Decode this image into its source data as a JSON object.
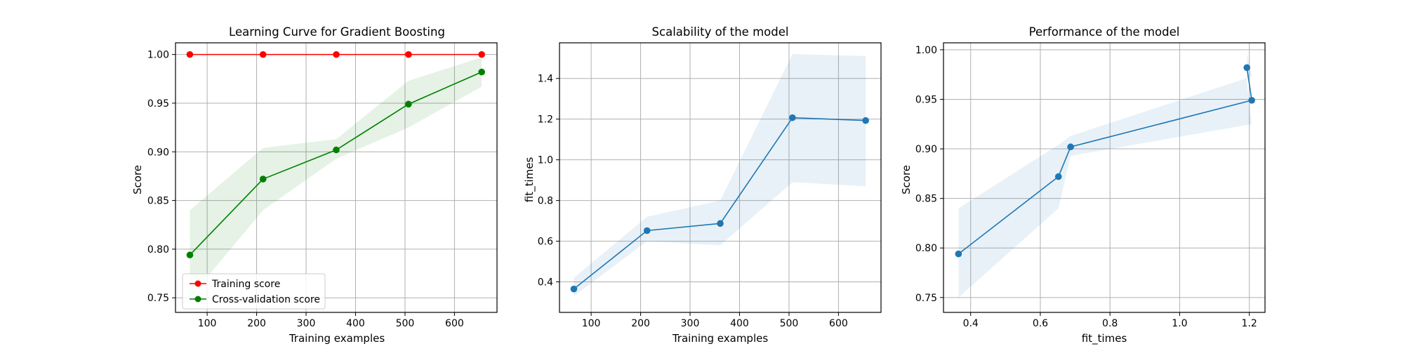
{
  "chart_data": [
    {
      "type": "line",
      "title": "Learning Curve for Gradient Boosting",
      "xlabel": "Training examples",
      "ylabel": "Score",
      "xlim": [
        36,
        686
      ],
      "ylim": [
        0.735,
        1.012
      ],
      "xticks": [
        100,
        200,
        300,
        400,
        500,
        600
      ],
      "yticks": [
        0.75,
        0.8,
        0.85,
        0.9,
        0.95,
        1.0
      ],
      "ytick_labels": [
        "0.75",
        "0.80",
        "0.85",
        "0.90",
        "0.95",
        "1.00"
      ],
      "grid": true,
      "legend_position": "lower-left",
      "x": [
        65,
        213,
        361,
        507,
        655
      ],
      "series": [
        {
          "name": "Training score",
          "color": "#ff0000",
          "values": [
            1.0,
            1.0,
            1.0,
            1.0,
            1.0
          ],
          "band_low": [
            1.0,
            1.0,
            1.0,
            1.0,
            1.0
          ],
          "band_high": [
            1.0,
            1.0,
            1.0,
            1.0,
            1.0
          ],
          "band_color": "#ff0000"
        },
        {
          "name": "Cross-validation score",
          "color": "#008000",
          "values": [
            0.794,
            0.872,
            0.902,
            0.949,
            0.982
          ],
          "band_low": [
            0.75,
            0.84,
            0.893,
            0.925,
            0.967
          ],
          "band_high": [
            0.84,
            0.904,
            0.913,
            0.973,
            0.997
          ],
          "band_color": "#008000"
        }
      ]
    },
    {
      "type": "line",
      "title": "Scalability of the model",
      "xlabel": "Training examples",
      "ylabel": "fit_times",
      "xlim": [
        36,
        686
      ],
      "ylim": [
        0.25,
        1.575
      ],
      "xticks": [
        100,
        200,
        300,
        400,
        500,
        600
      ],
      "yticks": [
        0.4,
        0.6,
        0.8,
        1.0,
        1.2,
        1.4
      ],
      "ytick_labels": [
        "0.4",
        "0.6",
        "0.8",
        "1.0",
        "1.2",
        "1.4"
      ],
      "grid": true,
      "x": [
        65,
        213,
        361,
        507,
        655
      ],
      "series": [
        {
          "name": "fit_times",
          "color": "#1f77b4",
          "values": [
            0.365,
            0.652,
            0.687,
            1.207,
            1.193
          ],
          "band_low": [
            0.33,
            0.6,
            0.58,
            0.89,
            0.87
          ],
          "band_high": [
            0.42,
            0.72,
            0.8,
            1.52,
            1.51
          ],
          "band_color": "#1f77b4"
        }
      ]
    },
    {
      "type": "line",
      "title": "Performance of the model",
      "xlabel": "fit_times",
      "ylabel": "Score",
      "xlim": [
        0.322,
        1.245
      ],
      "ylim": [
        0.735,
        1.007
      ],
      "xticks": [
        0.4,
        0.6,
        0.8,
        1.0,
        1.2
      ],
      "xtick_labels": [
        "0.4",
        "0.6",
        "0.8",
        "1.0",
        "1.2"
      ],
      "yticks": [
        0.75,
        0.8,
        0.85,
        0.9,
        0.95,
        1.0
      ],
      "ytick_labels": [
        "0.75",
        "0.80",
        "0.85",
        "0.90",
        "0.95",
        "1.00"
      ],
      "grid": true,
      "x": [
        0.365,
        0.652,
        0.687,
        1.207,
        1.193
      ],
      "series": [
        {
          "name": "Score",
          "color": "#1f77b4",
          "values": [
            0.794,
            0.872,
            0.902,
            0.949,
            0.982
          ],
          "band_low": [
            0.75,
            0.84,
            0.893,
            0.925,
            0.967
          ],
          "band_high": [
            0.84,
            0.904,
            0.913,
            0.973,
            0.997
          ],
          "band_color": "#1f77b4"
        }
      ]
    }
  ]
}
